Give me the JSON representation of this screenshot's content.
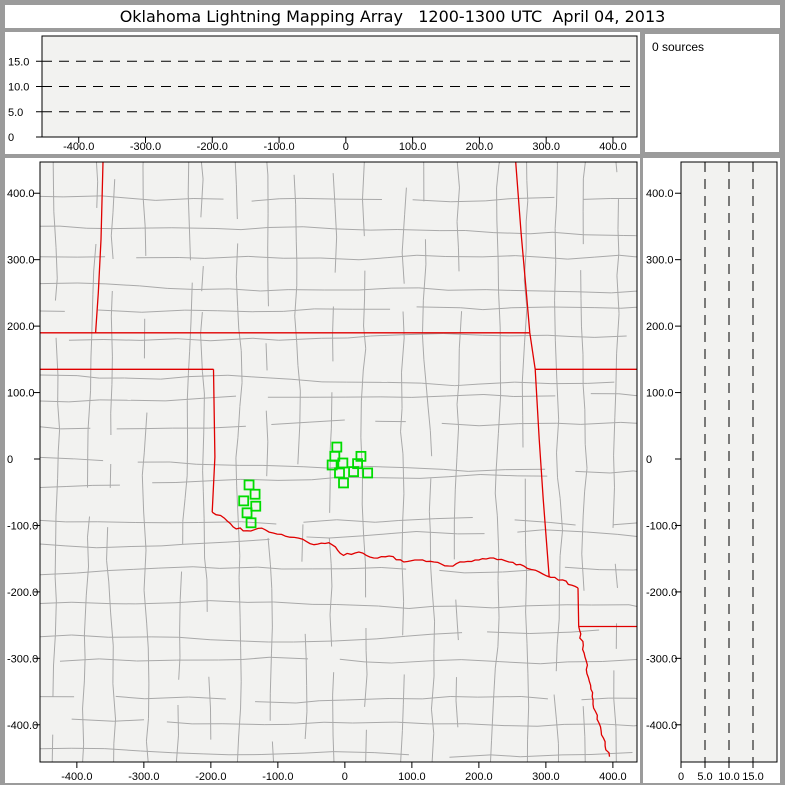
{
  "window_title": "Oklahoma Lightning Mapping Array   1200-1300 UTC  April 04, 2013",
  "sources_panel": {
    "text": "0 sources"
  },
  "colors": {
    "frame_gray": "#9b9b9b",
    "margin_bg": "#ffffff",
    "plot_bg": "#f2f2f0",
    "axis": "#000000",
    "county": "#a9a9a9",
    "state_border": "#e00000",
    "station": "#00dc00"
  },
  "chart_data": [
    {
      "id": "altitude-vs-eastwest",
      "type": "scatter",
      "points": [],
      "n_sources": 0,
      "xlim": [
        -455,
        436
      ],
      "ylim": [
        0,
        20
      ],
      "x_ticks": [
        -400,
        -300,
        -200,
        -100,
        0,
        100,
        200,
        300,
        400
      ],
      "x_tick_labels": [
        "-400.0",
        "-300.0",
        "-200.0",
        "-100.0",
        "0",
        "100.0",
        "200.0",
        "300.0",
        "400.0"
      ],
      "y_ticks": [
        0,
        5,
        10,
        15
      ],
      "y_tick_labels": [
        "0",
        "5.0",
        "10.0",
        "15.0"
      ],
      "y_gridlines_dashed": [
        5,
        10,
        15
      ],
      "grid": "dashed-horizontal",
      "legend": "none"
    },
    {
      "id": "plan-view-map",
      "type": "scatter",
      "points": [],
      "n_sources": 0,
      "xlim": [
        -455,
        436
      ],
      "ylim": [
        -456,
        447
      ],
      "x_ticks": [
        -400,
        -300,
        -200,
        -100,
        0,
        100,
        200,
        300,
        400
      ],
      "x_tick_labels": [
        "-400.0",
        "-300.0",
        "-200.0",
        "-100.0",
        "0",
        "100.0",
        "200.0",
        "300.0",
        "400.0"
      ],
      "y_ticks": [
        400,
        300,
        200,
        100,
        0,
        -100,
        -200,
        -300,
        -400
      ],
      "y_tick_labels": [
        "400.0",
        "300.0",
        "200.0",
        "100.0",
        "0",
        "-100.0",
        "-200.0",
        "-300.0",
        "-400.0"
      ],
      "stations_km": [
        [
          -12,
          18
        ],
        [
          -15,
          4
        ],
        [
          24,
          4
        ],
        [
          -19,
          -9
        ],
        [
          -3,
          -6
        ],
        [
          19,
          -7
        ],
        [
          -8,
          -21
        ],
        [
          13,
          -19
        ],
        [
          34,
          -21
        ],
        [
          -2,
          -36
        ],
        [
          -143,
          -39
        ],
        [
          -134,
          -53
        ],
        [
          -151,
          -63
        ],
        [
          -133,
          -71
        ],
        [
          -146,
          -81
        ],
        [
          -140,
          -96
        ]
      ],
      "county_grid": {
        "seed": 11,
        "col_step_km": 47,
        "row_step_km": 44,
        "jitter_km": 4,
        "skip_fraction": 0.12
      },
      "state_borders": [
        {
          "name": "colorado-kansas",
          "wiggle": false,
          "pts": [
            [
              -361,
              447
            ],
            [
              -364,
              330
            ],
            [
              -368,
              250
            ],
            [
              -372,
              190
            ]
          ]
        },
        {
          "name": "kansas-oklahoma-37n",
          "wiggle": false,
          "pts": [
            [
              -455,
              190
            ],
            [
              276,
              190
            ]
          ]
        },
        {
          "name": "oklahoma-texas-panhandle-36.5n",
          "wiggle": false,
          "pts": [
            [
              -455,
              135
            ],
            [
              -196,
              135
            ]
          ]
        },
        {
          "name": "texas-oklahoma-100w",
          "wiggle": false,
          "pts": [
            [
              -196,
              135
            ],
            [
              -194,
              3
            ],
            [
              -198,
              -80
            ]
          ]
        },
        {
          "name": "red-river-oklahoma-texas",
          "wiggle": true,
          "pts": [
            [
              -198,
              -80
            ],
            [
              -180,
              -89
            ],
            [
              -167,
              -102
            ],
            [
              -146,
              -108
            ],
            [
              -124,
              -104
            ],
            [
              -101,
              -113
            ],
            [
              -69,
              -119
            ],
            [
              -46,
              -129
            ],
            [
              -24,
              -126
            ],
            [
              -2,
              -145
            ],
            [
              21,
              -140
            ],
            [
              43,
              -149
            ],
            [
              66,
              -146
            ],
            [
              88,
              -155
            ],
            [
              110,
              -152
            ],
            [
              133,
              -155
            ],
            [
              155,
              -161
            ],
            [
              178,
              -155
            ],
            [
              200,
              -152
            ],
            [
              222,
              -149
            ],
            [
              245,
              -155
            ],
            [
              267,
              -161
            ],
            [
              290,
              -170
            ],
            [
              307,
              -178
            ],
            [
              325,
              -182
            ],
            [
              339,
              -190
            ],
            [
              348,
              -194
            ]
          ]
        },
        {
          "name": "kansas-missouri",
          "wiggle": false,
          "pts": [
            [
              255,
              447
            ],
            [
              263,
              340
            ],
            [
              270,
              260
            ],
            [
              276,
              190
            ]
          ]
        },
        {
          "name": "oklahoma-missouri",
          "wiggle": false,
          "pts": [
            [
              276,
              190
            ],
            [
              284,
              135
            ]
          ]
        },
        {
          "name": "missouri-arkansas-36.5n",
          "wiggle": false,
          "pts": [
            [
              284,
              135
            ],
            [
              436,
              135
            ]
          ]
        },
        {
          "name": "oklahoma-arkansas",
          "wiggle": false,
          "pts": [
            [
              284,
              135
            ],
            [
              290,
              30
            ],
            [
              296,
              -60
            ],
            [
              305,
              -178
            ]
          ]
        },
        {
          "name": "texas-arkansas",
          "wiggle": false,
          "pts": [
            [
              348,
              -194
            ],
            [
              349,
              -252
            ]
          ]
        },
        {
          "name": "arkansas-louisiana-33n",
          "wiggle": false,
          "pts": [
            [
              349,
              -252
            ],
            [
              436,
              -252
            ]
          ]
        },
        {
          "name": "texas-louisiana",
          "wiggle": true,
          "pts": [
            [
              349,
              -252
            ],
            [
              357,
              -292
            ],
            [
              365,
              -335
            ],
            [
              374,
              -380
            ],
            [
              383,
              -415
            ],
            [
              395,
              -448
            ]
          ]
        }
      ]
    },
    {
      "id": "altitude-vs-northsouth",
      "type": "scatter",
      "points": [],
      "n_sources": 0,
      "xlim": [
        0,
        20
      ],
      "ylim": [
        -456,
        447
      ],
      "x_ticks": [
        0,
        5,
        10,
        15
      ],
      "x_tick_labels": [
        "0",
        "5.0",
        "10.0",
        "15.0"
      ],
      "x_gridlines_dashed": [
        5,
        10,
        15
      ],
      "y_ticks": [
        400,
        300,
        200,
        100,
        0,
        -100,
        -200,
        -300,
        -400
      ],
      "y_tick_labels": [
        "400.0",
        "300.0",
        "200.0",
        "100.0",
        "0",
        "-100.0",
        "-200.0",
        "-300.0",
        "-400.0"
      ],
      "grid": "dashed-vertical",
      "legend": "none"
    }
  ]
}
